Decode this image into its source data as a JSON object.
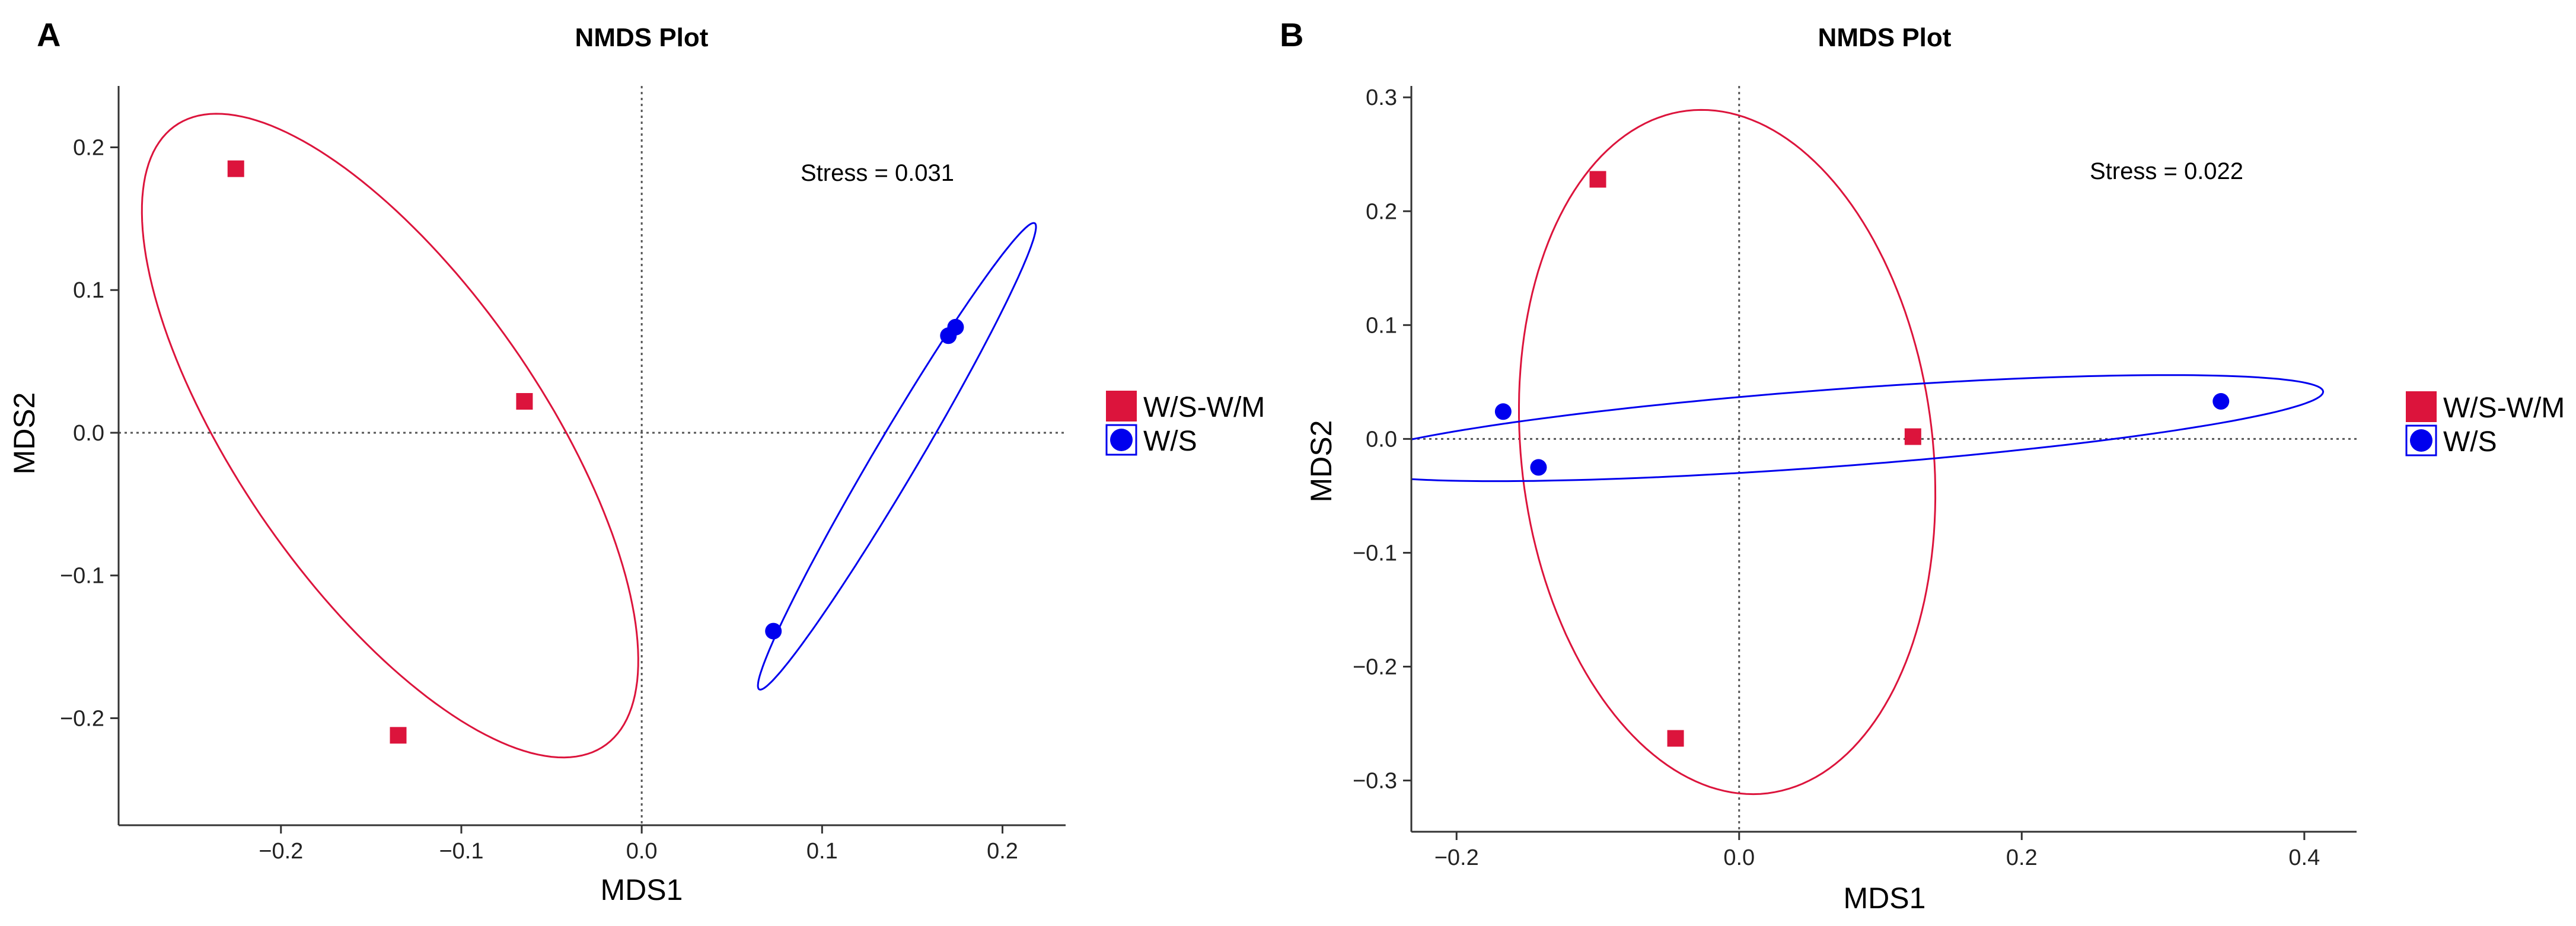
{
  "chart_data": [
    {
      "panel_label": "A",
      "type": "scatter",
      "title": "NMDS Plot",
      "xlabel": "MDS1",
      "ylabel": "MDS2",
      "xlim": [
        -0.29,
        0.235
      ],
      "ylim": [
        -0.275,
        0.243
      ],
      "xticks": [
        -0.2,
        -0.1,
        0.0,
        0.1,
        0.2
      ],
      "xtick_labels": [
        "−0.2",
        "−0.1",
        "0.0",
        "0.1",
        "0.2"
      ],
      "yticks": [
        -0.2,
        -0.1,
        0.0,
        0.1,
        0.2
      ],
      "ytick_labels": [
        "−0.2",
        "−0.1",
        "0.0",
        "0.1",
        "0.2"
      ],
      "annotation": "Stress = 0.031",
      "series": [
        {
          "name": "W/S-W/M",
          "marker": "square",
          "color": "#dc143c",
          "points": [
            [
              -0.225,
              0.185
            ],
            [
              -0.065,
              0.022
            ],
            [
              -0.135,
              -0.212
            ]
          ]
        },
        {
          "name": "W/S",
          "marker": "circle",
          "color": "#0000ee",
          "points": [
            [
              0.073,
              -0.139
            ],
            [
              0.17,
              0.068
            ],
            [
              0.174,
              0.074
            ]
          ]
        }
      ],
      "ellipses": [
        {
          "series": "W/S-W/M",
          "color": "#dc143c",
          "cx": -0.1395,
          "cy": -0.002,
          "rx": 0.2486,
          "ry": 0.0894,
          "angle": -63.2
        },
        {
          "series": "W/S",
          "color": "#0000ee",
          "cx": 0.1415,
          "cy": -0.0165,
          "rx": 0.1803,
          "ry": 0.0128,
          "angle": 65.0
        }
      ],
      "legend": [
        {
          "label": "W/S-W/M",
          "marker": "square",
          "color": "#dc143c"
        },
        {
          "label": "W/S",
          "marker": "circle",
          "color": "#0000ee"
        }
      ]
    },
    {
      "panel_label": "B",
      "type": "scatter",
      "title": "NMDS Plot",
      "xlabel": "MDS1",
      "ylabel": "MDS2",
      "xlim": [
        -0.232,
        0.437
      ],
      "ylim": [
        -0.345,
        0.31
      ],
      "xticks": [
        -0.2,
        0.0,
        0.2,
        0.4
      ],
      "xtick_labels": [
        "−0.2",
        "0.0",
        "0.2",
        "0.4"
      ],
      "yticks": [
        -0.3,
        -0.2,
        -0.1,
        0.0,
        0.1,
        0.2,
        0.3
      ],
      "ytick_labels": [
        "−0.3",
        "−0.2",
        "−0.1",
        "0.0",
        "0.1",
        "0.2",
        "0.3"
      ],
      "annotation": "Stress = 0.022",
      "series": [
        {
          "name": "W/S-W/M",
          "marker": "square",
          "color": "#dc143c",
          "points": [
            [
              -0.1,
              0.228
            ],
            [
              0.123,
              0.002
            ],
            [
              -0.045,
              -0.263
            ]
          ]
        },
        {
          "name": "W/S",
          "marker": "circle",
          "color": "#0000ee",
          "points": [
            [
              -0.167,
              0.024
            ],
            [
              -0.142,
              -0.025
            ],
            [
              0.341,
              0.033
            ]
          ]
        }
      ],
      "ellipses": [
        {
          "series": "W/S-W/M",
          "color": "#dc143c",
          "cx": -0.0085,
          "cy": -0.0115,
          "rx": 0.3012,
          "ry": 0.1459,
          "angle": -85.5
        },
        {
          "series": "W/S",
          "color": "#0000ee",
          "cx": 0.066,
          "cy": 0.0095,
          "rx": 0.3488,
          "ry": 0.0338,
          "angle": 5.3
        }
      ],
      "legend": [
        {
          "label": "W/S-W/M",
          "marker": "square",
          "color": "#dc143c"
        },
        {
          "label": "W/S",
          "marker": "circle",
          "color": "#0000ee"
        }
      ]
    }
  ]
}
